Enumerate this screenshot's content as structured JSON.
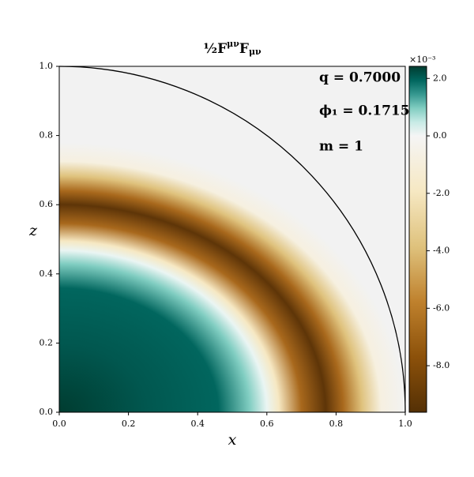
{
  "chart_data": {
    "type": "heatmap",
    "title_parts": [
      "½",
      "F",
      "μν",
      "F",
      "μν"
    ],
    "x_label": "x",
    "y_label": "z",
    "xlim": [
      0,
      1
    ],
    "ylim": [
      0,
      1
    ],
    "xticks": [
      {
        "value": 0,
        "label": "0.0"
      },
      0.2,
      0.4,
      0.6,
      0.8,
      {
        "value": 1,
        "label": "1.0"
      }
    ],
    "yticks": [
      {
        "value": 0,
        "label": "0.0"
      },
      0.2,
      0.4,
      0.6,
      0.8,
      {
        "value": 1,
        "label": "1.0"
      }
    ],
    "annotations": [
      "q  = 0.7000",
      "ϕ₁ = 0.1715",
      "m = 1"
    ],
    "colorbar": {
      "clim": [
        -9.62,
        2.42
      ],
      "scale_label": "×10⁻³",
      "ticks": [
        {
          "value": 2,
          "label": "2.0"
        },
        {
          "value": 0,
          "label": "0.0"
        },
        {
          "value": -2,
          "label": "-2.0"
        },
        {
          "value": -4,
          "label": "-4.0"
        },
        {
          "value": -6,
          "label": "-6.0"
        },
        {
          "value": -8,
          "label": "-8.0"
        }
      ],
      "colormap_negative": [
        "#543005",
        "#8c510a",
        "#bf812d",
        "#dfc27d",
        "#f6e8c3",
        "#f5f5f5"
      ],
      "colormap_positive": [
        "#f5f5f5",
        "#c7eae5",
        "#80cdc1",
        "#35978f",
        "#01665e",
        "#003c30"
      ]
    }
  }
}
